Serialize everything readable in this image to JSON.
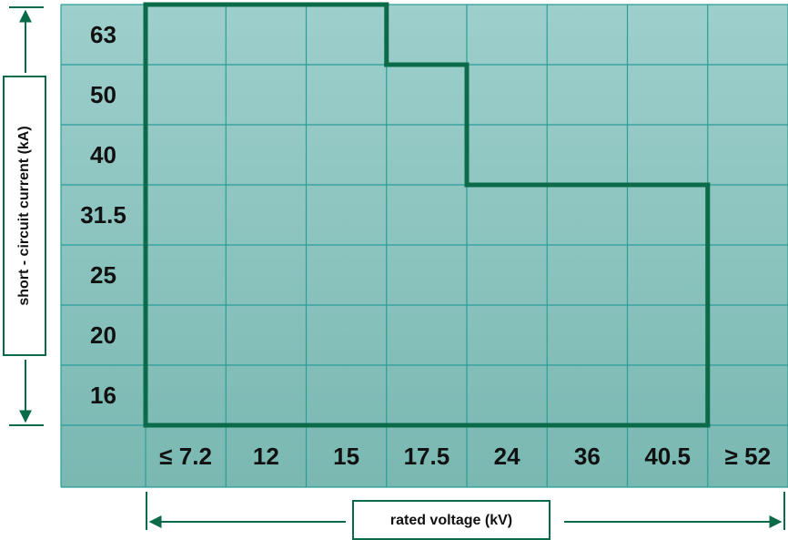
{
  "chart_data": {
    "type": "step",
    "y_label": "short - circuit current (kA)",
    "x_label": "rated voltage (kV)",
    "categories": [
      "≤ 7.2",
      "12",
      "15",
      "17.5",
      "24",
      "36",
      "40.5",
      "≥ 52"
    ],
    "yticks": [
      16,
      20,
      25,
      31.5,
      40,
      50,
      63
    ],
    "values": [
      63,
      63,
      63,
      50,
      31.5,
      31.5,
      31.5,
      null
    ],
    "color": "#0b6b48"
  }
}
